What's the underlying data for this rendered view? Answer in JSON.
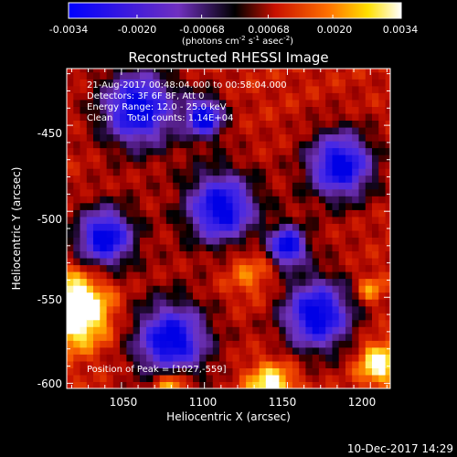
{
  "colorbar": {
    "ticks": [
      "-0.0034",
      "-0.0020",
      "-0.00068",
      "0.00068",
      "0.0020",
      "0.0034"
    ],
    "unit_parts": {
      "a": "(photons cm",
      "e1": "-2",
      "b": " s",
      "e2": "-1",
      "c": " asec",
      "e3": "-2",
      "d": ")"
    }
  },
  "plot": {
    "title": "Reconstructed RHESSI Image",
    "info": [
      "21-Aug-2017 00:48:04.000 to 00:58:04.000",
      "Detectors: 3F 6F 8F, Att 0",
      "Energy Range: 12.0 - 25.0 keV",
      "Clean     Total counts: 1.14E+04"
    ],
    "peak": "Position of Peak = [1027,-559]",
    "xlabel": "Heliocentric X (arcsec)",
    "ylabel": "Heliocentric Y (arcsec)"
  },
  "footer": {
    "timestamp": "10-Dec-2017 14:29"
  },
  "chart_data": {
    "type": "heatmap",
    "title": "Reconstructed RHESSI Image",
    "xlabel": "Heliocentric X (arcsec)",
    "ylabel": "Heliocentric Y (arcsec)",
    "xlim": [
      1017,
      1212
    ],
    "ylim": [
      -603,
      -417
    ],
    "x_ticks": [
      "1050",
      "1100",
      "1150",
      "1200"
    ],
    "y_ticks": [
      "-450",
      "-500",
      "-550",
      "-600"
    ],
    "colorbar_range": [
      -0.0034,
      0.0034
    ],
    "colorbar_ticks": [
      -0.0034,
      -0.002,
      -0.00068,
      0.00068,
      0.002,
      0.0034
    ],
    "colormap": "blue-purple-red-yellow-white",
    "peak_position": [
      1027,
      -559
    ]
  }
}
